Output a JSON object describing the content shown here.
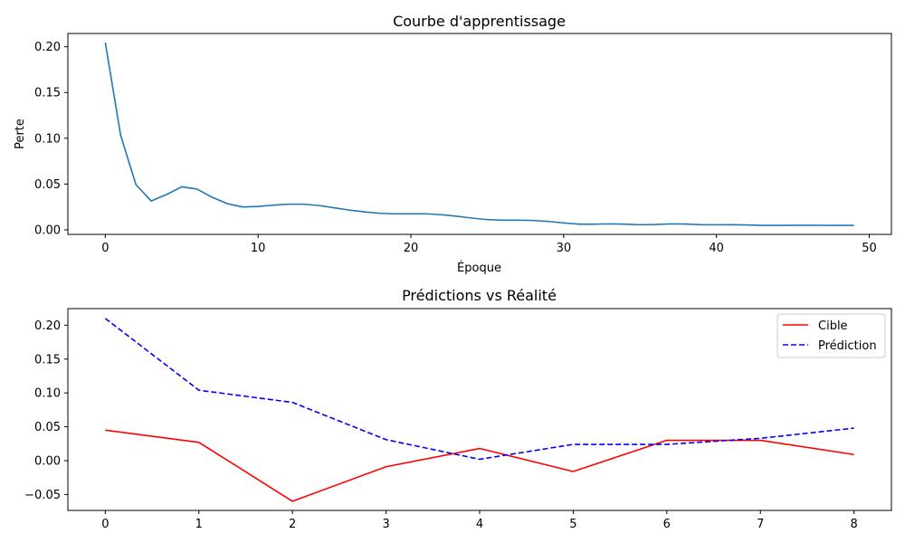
{
  "chart_data": [
    {
      "type": "line",
      "title": "Courbe d'apprentissage",
      "xlabel": "Époque",
      "ylabel": "Perte",
      "xlim": [
        -2.45,
        51.45
      ],
      "ylim": [
        -0.005,
        0.2145
      ],
      "xticks": [
        0,
        10,
        20,
        30,
        40,
        50
      ],
      "yticks": [
        0.0,
        0.05,
        0.1,
        0.15,
        0.2
      ],
      "ytick_labels": [
        "0.00",
        "0.05",
        "0.10",
        "0.15",
        "0.20"
      ],
      "grid": false,
      "colors": [
        "#1f77b4"
      ],
      "series": [
        {
          "x": [
            0,
            1,
            2,
            3,
            4,
            5,
            6,
            7,
            8,
            9,
            10,
            11,
            12,
            13,
            14,
            15,
            16,
            17,
            18,
            19,
            20,
            21,
            22,
            23,
            24,
            25,
            26,
            27,
            28,
            29,
            30,
            31,
            32,
            33,
            34,
            35,
            36,
            37,
            38,
            39,
            40,
            41,
            42,
            43,
            44,
            45,
            46,
            47,
            48,
            49
          ],
          "values": [
            0.2045,
            0.1035,
            0.0495,
            0.0315,
            0.0385,
            0.047,
            0.0445,
            0.0355,
            0.0285,
            0.025,
            0.0255,
            0.027,
            0.028,
            0.028,
            0.0265,
            0.024,
            0.0215,
            0.0195,
            0.018,
            0.0175,
            0.0175,
            0.0175,
            0.0165,
            0.0148,
            0.0128,
            0.0112,
            0.0105,
            0.0105,
            0.0102,
            0.0092,
            0.0075,
            0.0062,
            0.0062,
            0.0065,
            0.0062,
            0.0055,
            0.0058,
            0.0065,
            0.0063,
            0.0056,
            0.0055,
            0.0056,
            0.0053,
            0.0048,
            0.0048,
            0.005,
            0.005,
            0.0049,
            0.0048,
            0.0048
          ]
        }
      ]
    },
    {
      "type": "line",
      "title": "Prédictions vs Réalité",
      "xlabel": "",
      "ylabel": "",
      "xlim": [
        -0.4,
        8.4
      ],
      "ylim": [
        -0.0735,
        0.2245
      ],
      "xticks": [
        0,
        1,
        2,
        3,
        4,
        5,
        6,
        7,
        8
      ],
      "yticks": [
        -0.05,
        0.0,
        0.05,
        0.1,
        0.15,
        0.2
      ],
      "ytick_labels": [
        "−0.05",
        "0.00",
        "0.05",
        "0.10",
        "0.15",
        "0.20"
      ],
      "grid": false,
      "legend_position": "top-right",
      "series": [
        {
          "name": "Cible",
          "color": "#ff0000",
          "style": "solid",
          "x": [
            0,
            1,
            2,
            3,
            4,
            5,
            6,
            7,
            8
          ],
          "values": [
            0.045,
            0.027,
            -0.06,
            -0.009,
            0.018,
            -0.016,
            0.03,
            0.03,
            0.009
          ]
        },
        {
          "name": "Prédiction",
          "color": "#0000ff",
          "style": "dashed",
          "x": [
            0,
            1,
            2,
            3,
            4,
            5,
            6,
            7,
            8
          ],
          "values": [
            0.21,
            0.104,
            0.086,
            0.031,
            0.002,
            0.024,
            0.024,
            0.033,
            0.048
          ]
        }
      ]
    }
  ]
}
